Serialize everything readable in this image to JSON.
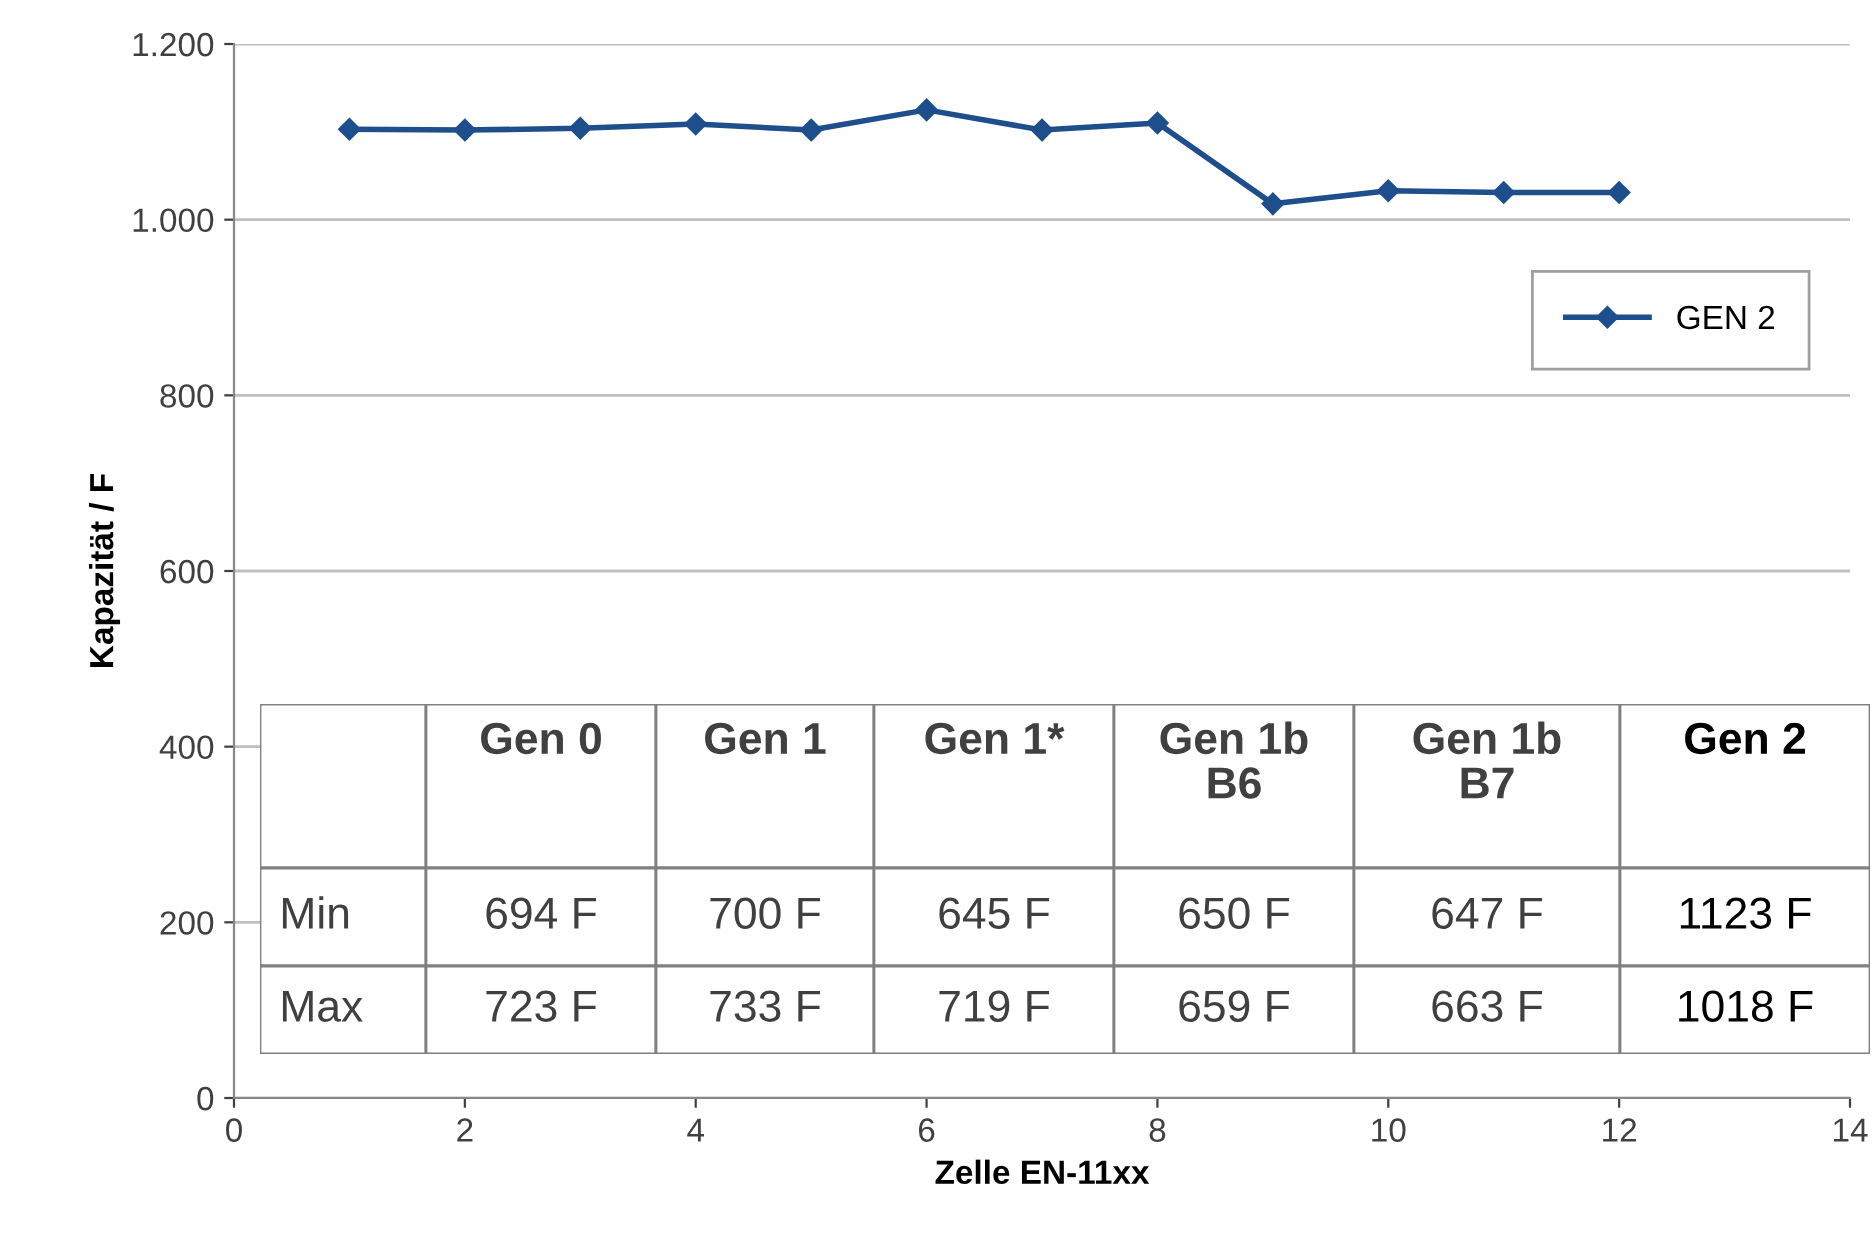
{
  "chart_data": [
    {
      "type": "line",
      "xlabel": "Zelle EN-11xx",
      "ylabel": "Kapazität / F",
      "x": [
        1,
        2,
        3,
        4,
        5,
        6,
        7,
        8,
        9,
        10,
        11,
        12
      ],
      "series": [
        {
          "name": "GEN 2",
          "color": "#1f4e8c",
          "values": [
            1103,
            1102,
            1104,
            1109,
            1102,
            1125,
            1102,
            1110,
            1018,
            1033,
            1031,
            1031
          ]
        }
      ],
      "xlim": [
        0,
        14
      ],
      "xticks": [
        0,
        2,
        4,
        6,
        8,
        10,
        12,
        14
      ],
      "ylim": [
        0,
        1200
      ],
      "yticks": [
        0,
        200,
        400,
        600,
        800,
        {
          "value": 1000,
          "label": "1.000"
        },
        {
          "value": 1200,
          "label": "1.200"
        }
      ],
      "grid": "y",
      "legend": "top right",
      "marker": "diamond",
      "line_style": "solid"
    },
    {
      "type": "other",
      "categories": [
        "Gen 0",
        "Gen 1",
        "Gen 1*",
        "Gen 1b\nB6",
        "Gen 1b\nB7",
        "Gen 2"
      ],
      "y_categories": [
        "Min",
        "Max"
      ],
      "cell_labels": [
        [
          "694 F",
          "700 F",
          "645 F",
          "650 F",
          "647 F",
          "1123 F"
        ],
        [
          "723 F",
          "733 F",
          "719 F",
          "659 F",
          "663 F",
          "1018 F"
        ]
      ]
    }
  ]
}
